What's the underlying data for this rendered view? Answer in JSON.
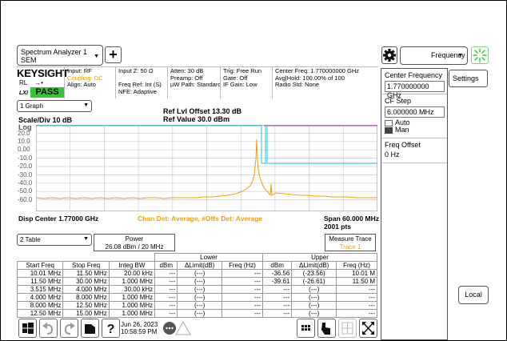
{
  "window": {
    "instrument_label": "Spectrum Analyzer 1",
    "mode_label": "SEM"
  },
  "toolbar": {
    "add_label": "+",
    "menu_label": "Frequency"
  },
  "brand": {
    "logo": "KEYSIGHT",
    "rl": "RL",
    "lxi": "LXI",
    "pass": "PASS"
  },
  "info": {
    "col1": [
      "Input: RF",
      "Coupling: DC",
      "Align: Auto"
    ],
    "col2": [
      "Input Z: 50 Ω",
      "",
      "Freq Ref: Int (S)",
      "NFE: Adaptive"
    ],
    "col3": [
      "Atten: 30 dB",
      "Preamp: Off",
      "µW Path: Standard"
    ],
    "col4": [
      "Trig: Free Run",
      "Gate: Off",
      "IF Gain: Low"
    ],
    "col5": [
      "Center Freq: 1.770000000 GHz",
      "Avg|Hold: 100.00% of 100",
      "Radio Std: None"
    ],
    "coupling_color": "#e8a000"
  },
  "graph": {
    "selector": "1 Graph",
    "ref_offset": "Ref Lvl Offset 13.30 dB",
    "ref_value": "Ref Value 30.0 dBm",
    "scale": "Scale/Div 10 dB",
    "log": "Log",
    "y_ticks": [
      "20.0",
      "10.0",
      "0.00",
      "-10.0",
      "-20.0",
      "-30.0",
      "-40.0",
      "-50.0",
      "-60.0"
    ],
    "center": "Disp Center 1.77000 GHz",
    "detector": "Chan Det: Average, #Offs Det: Average",
    "span": "Span 60.000 MHz",
    "points": "2001 pts",
    "trace_color": "#f0a000",
    "limit_cyan": "#40d0e0",
    "limit_magenta": "#d060d0"
  },
  "table": {
    "selector": "2 Table",
    "power_title": "Power",
    "power_value": "26.08 dBm / 20 MHz",
    "measure_title": "Measure Trace",
    "measure_value": "Trace 1",
    "group_lower": "Lower",
    "group_upper": "Upper",
    "headers": [
      "Start Freq",
      "Stop Freq",
      "Integ BW",
      "dBm",
      "ΔLimit(dB)",
      "Freq (Hz)",
      "dBm",
      "ΔLimit(dB)",
      "Freq (Hz)"
    ],
    "rows": [
      [
        "10.01 MHz",
        "11.50 MHz",
        "20.00 kHz",
        "---",
        "(---)",
        "---",
        "-36.56",
        "(-23.56)",
        "10.01 M"
      ],
      [
        "11.50 MHz",
        "30.00 MHz",
        "1.000 MHz",
        "---",
        "(---)",
        "---",
        "-39.61",
        "(-26.61)",
        "11.50 M"
      ],
      [
        "3.515 MHz",
        "4.000 MHz",
        "30.00 kHz",
        "---",
        "(---)",
        "---",
        "---",
        "(---)",
        "---"
      ],
      [
        "4.000 MHz",
        "8.000 MHz",
        "1.000 MHz",
        "---",
        "(---)",
        "---",
        "---",
        "(---)",
        "---"
      ],
      [
        "8.000 MHz",
        "12.50 MHz",
        "1.000 MHz",
        "---",
        "(---)",
        "---",
        "---",
        "(---)",
        "---"
      ],
      [
        "12.50 MHz",
        "15.00 MHz",
        "1.000 MHz",
        "---",
        "(---)",
        "---",
        "---",
        "(---)",
        "---"
      ]
    ]
  },
  "panel": {
    "settings": "Settings",
    "center_freq_label": "Center Frequency",
    "center_freq_value": "1.770000000 GHz",
    "cf_step_label": "CF Step",
    "cf_step_value": "6.000000 MHz",
    "auto": "Auto",
    "man": "Man",
    "freq_offset_label": "Freq Offset",
    "freq_offset_value": "0 Hz",
    "local": "Local"
  },
  "taskbar": {
    "date": "Jun 26, 2023",
    "time": "10:58:59 PM"
  }
}
